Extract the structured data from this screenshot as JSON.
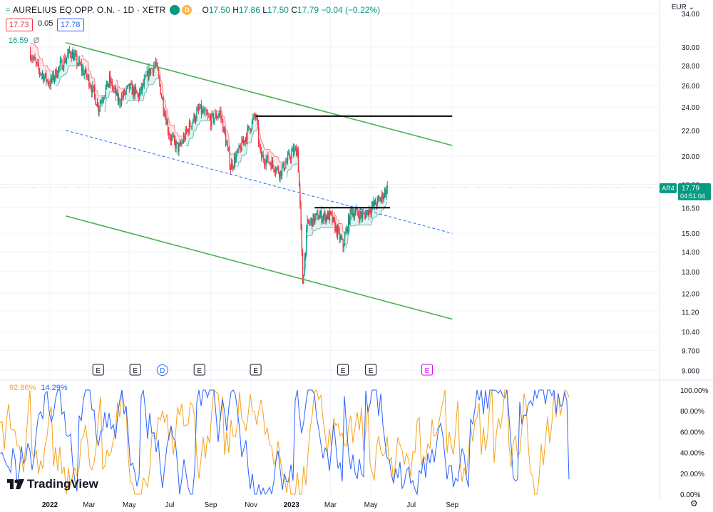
{
  "header": {
    "title": "AURELIUS EQ.OPP. O.N. · 1D · XETR",
    "status_dot": "",
    "d_badge": "D",
    "ohlc": [
      {
        "k": "O",
        "v": "17.50"
      },
      {
        "k": "H",
        "v": "17.86"
      },
      {
        "k": "L",
        "v": "17.50"
      },
      {
        "k": "C",
        "v": "17.79"
      }
    ],
    "change": "−0.04 (−0.22%)"
  },
  "bid": "17.73",
  "spread": "0.05",
  "ask": "17.78",
  "indicator_value": "16.59",
  "indicator_symbol": "Ø",
  "currency": "EUR",
  "stoch_values": {
    "k": "92.86%",
    "d": "14.29%"
  },
  "last_price_label": {
    "symbol": "AR4",
    "price": "17.79",
    "countdown": "04:51:04"
  },
  "brand": "TradingView",
  "colors": {
    "up": "#089981",
    "down": "#f23645",
    "channel": "#4caf50",
    "midline": "#2962ff",
    "stoch_k": "#f7a21b",
    "stoch_d": "#2962ff",
    "grid": "#f0f3fa"
  },
  "chart_data": [
    {
      "type": "candlestick",
      "title": "AURELIUS EQ.OPP. O.N. · 1D · XETR",
      "x_tick_labels": [
        "2022",
        "Mar",
        "May",
        "Jul",
        "Sep",
        "Nov",
        "2023",
        "Mar",
        "May",
        "Jul",
        "Sep"
      ],
      "y_tick_labels": [
        "9.000",
        "9.700",
        "10.40",
        "11.20",
        "12.00",
        "13.00",
        "14.00",
        "15.00",
        "16.50",
        "18.00",
        "20.00",
        "22.00",
        "24.00",
        "26.00",
        "28.00",
        "30.00",
        "34.00"
      ],
      "y_scale": "log",
      "ylim": [
        8.7,
        34.0
      ],
      "grid": true,
      "series_close_approx": [
        {
          "date": "2021-12-01",
          "close": 29.5
        },
        {
          "date": "2021-12-15",
          "close": 27.5
        },
        {
          "date": "2022-01-01",
          "close": 26.2
        },
        {
          "date": "2022-01-15",
          "close": 27.8
        },
        {
          "date": "2022-02-01",
          "close": 29.5
        },
        {
          "date": "2022-02-15",
          "close": 28.0
        },
        {
          "date": "2022-03-01",
          "close": 26.5
        },
        {
          "date": "2022-03-15",
          "close": 24.0
        },
        {
          "date": "2022-04-01",
          "close": 26.5
        },
        {
          "date": "2022-04-15",
          "close": 24.5
        },
        {
          "date": "2022-05-01",
          "close": 25.8
        },
        {
          "date": "2022-05-15",
          "close": 25.0
        },
        {
          "date": "2022-06-01",
          "close": 27.5
        },
        {
          "date": "2022-06-10",
          "close": 28.2
        },
        {
          "date": "2022-06-20",
          "close": 24.5
        },
        {
          "date": "2022-07-01",
          "close": 21.5
        },
        {
          "date": "2022-07-15",
          "close": 20.5
        },
        {
          "date": "2022-08-01",
          "close": 22.5
        },
        {
          "date": "2022-08-15",
          "close": 23.8
        },
        {
          "date": "2022-09-01",
          "close": 22.8
        },
        {
          "date": "2022-09-15",
          "close": 23.5
        },
        {
          "date": "2022-10-01",
          "close": 19.2
        },
        {
          "date": "2022-10-15",
          "close": 20.5
        },
        {
          "date": "2022-11-01",
          "close": 22.5
        },
        {
          "date": "2022-11-08",
          "close": 23.3
        },
        {
          "date": "2022-11-15",
          "close": 20.0
        },
        {
          "date": "2022-12-01",
          "close": 19.5
        },
        {
          "date": "2022-12-15",
          "close": 18.8
        },
        {
          "date": "2023-01-01",
          "close": 20.2
        },
        {
          "date": "2023-01-10",
          "close": 20.5
        },
        {
          "date": "2023-01-18",
          "close": 12.5
        },
        {
          "date": "2023-01-25",
          "close": 15.5
        },
        {
          "date": "2023-02-10",
          "close": 16.0
        },
        {
          "date": "2023-03-01",
          "close": 16.0
        },
        {
          "date": "2023-03-20",
          "close": 14.3
        },
        {
          "date": "2023-04-01",
          "close": 16.3
        },
        {
          "date": "2023-04-20",
          "close": 16.0
        },
        {
          "date": "2023-05-01",
          "close": 16.5
        },
        {
          "date": "2023-05-15",
          "close": 17.0
        },
        {
          "date": "2023-05-26",
          "close": 17.79
        }
      ],
      "drawings": {
        "channel_upper": [
          {
            "date": "2022-01-25",
            "price": 30.5
          },
          {
            "date": "2023-09-01",
            "price": 20.8
          }
        ],
        "channel_lower": [
          {
            "date": "2022-01-25",
            "price": 16.0
          },
          {
            "date": "2023-09-01",
            "price": 10.9
          }
        ],
        "channel_mid": [
          {
            "date": "2022-01-25",
            "price": 22.0
          },
          {
            "date": "2023-09-01",
            "price": 15.0
          }
        ],
        "resistance_1": {
          "price": 23.2,
          "from": "2022-11-08",
          "to": "2023-09-01"
        },
        "resistance_2": {
          "price": 16.5,
          "from": "2023-02-05",
          "to": "2023-05-30"
        }
      },
      "earnings_markers": [
        {
          "date": "2022-03-15",
          "label": "E"
        },
        {
          "date": "2022-05-10",
          "label": "E"
        },
        {
          "date": "2022-06-20",
          "label": "D"
        },
        {
          "date": "2022-08-15",
          "label": "E"
        },
        {
          "date": "2022-11-08",
          "label": "E"
        },
        {
          "date": "2023-03-20",
          "label": "E"
        },
        {
          "date": "2023-05-01",
          "label": "E"
        },
        {
          "date": "2023-07-25",
          "label": "E"
        }
      ]
    },
    {
      "type": "line",
      "title": "",
      "y_tick_labels": [
        "0.00%",
        "20.00%",
        "40.00%",
        "60.00%",
        "80.00%",
        "100.00%"
      ],
      "ylim": [
        0,
        100
      ],
      "series": [
        {
          "name": "92.86%",
          "color": "#f7a21b"
        },
        {
          "name": "14.29%",
          "color": "#2962ff"
        }
      ]
    }
  ]
}
